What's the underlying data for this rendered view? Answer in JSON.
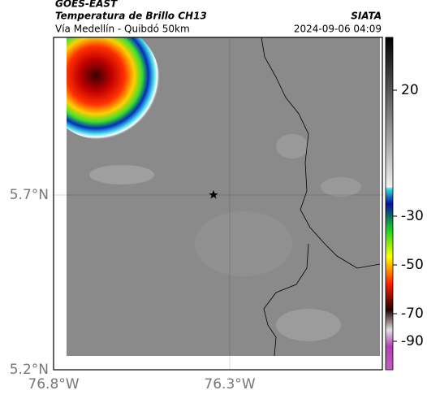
{
  "header": {
    "satellite": "GOES-EAST",
    "product": "Temperatura de Brillo CH13",
    "route": "Vía Medellín - Quibdó 50km",
    "source": "SIATA",
    "timestamp": "2024-09-06 04:09"
  },
  "axes": {
    "lat_ticks": [
      {
        "value": 5.7,
        "label": "5.7°N"
      },
      {
        "value": 5.2,
        "label": "5.2°N"
      }
    ],
    "lon_ticks": [
      {
        "value": -76.8,
        "label": "76.8°W"
      },
      {
        "value": -76.3,
        "label": "76.3°W"
      }
    ]
  },
  "colorbar": {
    "ticks": [
      20,
      -30,
      -50,
      -70,
      -90
    ]
  }
}
